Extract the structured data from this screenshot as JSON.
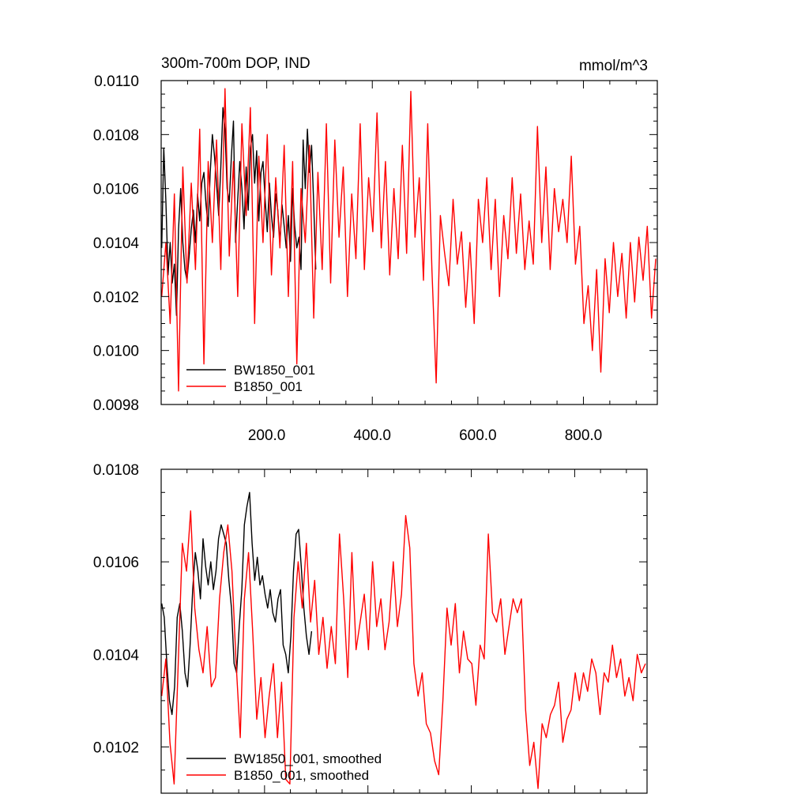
{
  "chart_data": [
    {
      "type": "line",
      "title": "300m-700m DOP, IND",
      "units": "mmol/m^3",
      "xlim": [
        0,
        940
      ],
      "ylim": [
        0.0098,
        0.011
      ],
      "x_ticks": [
        200,
        400,
        600,
        800
      ],
      "x_tick_labels": [
        "200.0",
        "400.0",
        "600.0",
        "800.0"
      ],
      "y_ticks": [
        0.0098,
        0.01,
        0.0102,
        0.0104,
        0.0106,
        0.0108,
        0.011
      ],
      "y_tick_labels": [
        "0.0098",
        "0.0100",
        "0.0102",
        "0.0104",
        "0.0106",
        "0.0108",
        "0.0110"
      ],
      "legend_position": "bottom-left",
      "series": [
        {
          "name": "BW1850_001",
          "color": "#000000",
          "x": [
            1,
            5,
            9,
            13,
            17,
            21,
            25,
            29,
            33,
            37,
            41,
            45,
            49,
            53,
            57,
            61,
            65,
            69,
            73,
            77,
            81,
            85,
            89,
            93,
            97,
            101,
            105,
            109,
            113,
            117,
            121,
            125,
            129,
            133,
            137,
            141,
            145,
            149,
            153,
            157,
            161,
            165,
            169,
            173,
            177,
            181,
            185,
            189,
            193,
            197,
            201,
            205,
            209,
            213,
            217,
            221,
            225,
            229,
            233,
            237,
            241,
            245,
            249,
            253,
            257,
            261,
            265,
            269,
            273,
            277,
            281,
            285,
            289,
            293
          ],
          "y": [
            0.01038,
            0.01075,
            0.01055,
            0.01028,
            0.0104,
            0.01025,
            0.01032,
            0.01013,
            0.01045,
            0.0106,
            0.0104,
            0.0103,
            0.01026,
            0.01035,
            0.01045,
            0.01052,
            0.0104,
            0.01058,
            0.01048,
            0.01062,
            0.01066,
            0.01054,
            0.01046,
            0.01066,
            0.0108,
            0.01072,
            0.01062,
            0.0105,
            0.01068,
            0.0109,
            0.01082,
            0.0106,
            0.01055,
            0.01072,
            0.01085,
            0.0104,
            0.01056,
            0.0107,
            0.0106,
            0.01045,
            0.01068,
            0.01052,
            0.01075,
            0.0108,
            0.01062,
            0.01074,
            0.01048,
            0.01066,
            0.0107,
            0.01056,
            0.01044,
            0.01062,
            0.0105,
            0.01042,
            0.01058,
            0.01052,
            0.0104,
            0.01054,
            0.01046,
            0.01038,
            0.0105,
            0.01033,
            0.0106,
            0.01046,
            0.01038,
            0.01042,
            0.0103,
            0.01078,
            0.0106,
            0.01082,
            0.01066,
            0.01076,
            0.01054,
            0.0103
          ]
        },
        {
          "name": "B1850_001",
          "color": "#ff0000",
          "x": [
            1,
            9,
            17,
            25,
            33,
            41,
            49,
            57,
            65,
            73,
            81,
            89,
            97,
            105,
            113,
            121,
            129,
            137,
            145,
            153,
            161,
            169,
            177,
            185,
            193,
            201,
            209,
            217,
            225,
            233,
            241,
            249,
            257,
            265,
            273,
            281,
            289,
            297,
            305,
            313,
            321,
            329,
            337,
            345,
            353,
            361,
            369,
            377,
            385,
            393,
            401,
            409,
            417,
            425,
            433,
            441,
            449,
            457,
            465,
            473,
            481,
            489,
            497,
            505,
            513,
            521,
            529,
            537,
            545,
            553,
            561,
            569,
            577,
            585,
            593,
            601,
            609,
            617,
            625,
            633,
            641,
            649,
            657,
            665,
            673,
            681,
            689,
            697,
            705,
            713,
            721,
            729,
            737,
            745,
            753,
            761,
            769,
            777,
            785,
            793,
            801,
            809,
            817,
            825,
            833,
            841,
            849,
            857,
            865,
            873,
            881,
            889,
            897,
            905,
            913,
            921,
            929,
            937
          ],
          "y": [
            0.0102,
            0.0104,
            0.0101,
            0.01058,
            0.00985,
            0.01068,
            0.01025,
            0.01062,
            0.0103,
            0.01082,
            0.00995,
            0.0107,
            0.0104,
            0.01078,
            0.0103,
            0.01097,
            0.01035,
            0.0107,
            0.0102,
            0.01084,
            0.0105,
            0.0109,
            0.0101,
            0.01072,
            0.0104,
            0.0108,
            0.01028,
            0.01064,
            0.01038,
            0.01076,
            0.0102,
            0.0107,
            0.00995,
            0.0106,
            0.0104,
            0.01076,
            0.01012,
            0.01066,
            0.0103,
            0.01084,
            0.01025,
            0.01078,
            0.01042,
            0.01068,
            0.0102,
            0.01058,
            0.01034,
            0.01084,
            0.0103,
            0.01064,
            0.01044,
            0.01088,
            0.01038,
            0.0107,
            0.01028,
            0.0106,
            0.01034,
            0.01076,
            0.01036,
            0.01096,
            0.01042,
            0.01064,
            0.01026,
            0.01084,
            0.0103,
            0.00988,
            0.0105,
            0.01036,
            0.01024,
            0.01056,
            0.01032,
            0.01044,
            0.01016,
            0.0104,
            0.0101,
            0.01056,
            0.0104,
            0.01064,
            0.0103,
            0.01056,
            0.0102,
            0.0105,
            0.01034,
            0.01064,
            0.01036,
            0.01058,
            0.0103,
            0.01048,
            0.01032,
            0.01083,
            0.0104,
            0.01068,
            0.0103,
            0.0106,
            0.01044,
            0.01056,
            0.0104,
            0.01072,
            0.01032,
            0.01046,
            0.0101,
            0.01024,
            0.01,
            0.0103,
            0.00992,
            0.01034,
            0.01014,
            0.0104,
            0.0102,
            0.01036,
            0.01012,
            0.0104,
            0.01018,
            0.01042,
            0.01026,
            0.01046,
            0.01012,
            0.01034
          ]
        }
      ]
    },
    {
      "type": "line",
      "xlim": [
        0,
        940
      ],
      "ylim": [
        0.0101,
        0.0108
      ],
      "x_ticks": [
        200,
        400,
        600,
        800
      ],
      "y_ticks": [
        0.0102,
        0.0104,
        0.0106,
        0.0108
      ],
      "y_tick_labels": [
        "0.0102",
        "0.0104",
        "0.0106",
        "0.0108"
      ],
      "legend_position": "bottom-left",
      "series": [
        {
          "name": "BW1850_001, smoothed",
          "color": "#000000",
          "x": [
            1,
            6,
            11,
            16,
            21,
            26,
            31,
            36,
            41,
            46,
            51,
            56,
            61,
            66,
            71,
            76,
            81,
            86,
            91,
            96,
            101,
            106,
            111,
            116,
            121,
            126,
            131,
            136,
            141,
            146,
            151,
            156,
            161,
            166,
            171,
            176,
            181,
            186,
            191,
            196,
            201,
            206,
            211,
            216,
            221,
            226,
            231,
            236,
            241,
            246,
            251,
            256,
            261,
            266,
            271,
            276,
            281,
            286,
            291
          ],
          "y": [
            0.01051,
            0.01048,
            0.01038,
            0.0103,
            0.01027,
            0.01033,
            0.01048,
            0.01051,
            0.01045,
            0.01036,
            0.01033,
            0.01042,
            0.01054,
            0.01062,
            0.01058,
            0.01052,
            0.01065,
            0.01059,
            0.01055,
            0.0106,
            0.01054,
            0.01058,
            0.01065,
            0.01068,
            0.01066,
            0.01064,
            0.01056,
            0.0105,
            0.01038,
            0.01036,
            0.01046,
            0.01054,
            0.01068,
            0.01072,
            0.01075,
            0.01064,
            0.01056,
            0.01061,
            0.01055,
            0.01057,
            0.01053,
            0.0105,
            0.01054,
            0.01049,
            0.01047,
            0.01052,
            0.01054,
            0.01042,
            0.0104,
            0.01036,
            0.01044,
            0.01058,
            0.01066,
            0.01067,
            0.01059,
            0.0105,
            0.01044,
            0.0104,
            0.01045
          ]
        },
        {
          "name": "B1850_001, smoothed",
          "color": "#ff0000",
          "x": [
            1,
            9,
            17,
            25,
            33,
            41,
            49,
            57,
            65,
            73,
            81,
            89,
            97,
            105,
            113,
            121,
            129,
            137,
            145,
            153,
            161,
            169,
            177,
            185,
            193,
            201,
            209,
            217,
            225,
            233,
            241,
            249,
            257,
            265,
            273,
            281,
            289,
            297,
            305,
            313,
            321,
            329,
            337,
            345,
            353,
            361,
            369,
            377,
            385,
            393,
            401,
            409,
            417,
            425,
            433,
            441,
            449,
            457,
            465,
            473,
            481,
            489,
            497,
            505,
            513,
            521,
            529,
            537,
            545,
            553,
            561,
            569,
            577,
            585,
            593,
            601,
            609,
            617,
            625,
            633,
            641,
            649,
            657,
            665,
            673,
            681,
            689,
            697,
            705,
            713,
            721,
            729,
            737,
            745,
            753,
            761,
            769,
            777,
            785,
            793,
            801,
            809,
            817,
            825,
            833,
            841,
            849,
            857,
            865,
            873,
            881,
            889,
            897,
            905,
            913,
            921,
            929,
            937
          ],
          "y": [
            0.01031,
            0.01039,
            0.01021,
            0.01012,
            0.01038,
            0.01064,
            0.01058,
            0.01071,
            0.0105,
            0.01041,
            0.01036,
            0.01046,
            0.01033,
            0.01035,
            0.01052,
            0.01062,
            0.01068,
            0.01058,
            0.01038,
            0.01022,
            0.01052,
            0.01062,
            0.01045,
            0.01026,
            0.01035,
            0.01022,
            0.01031,
            0.01038,
            0.01022,
            0.01034,
            0.01013,
            0.01012,
            0.01048,
            0.0106,
            0.0105,
            0.01064,
            0.01047,
            0.01056,
            0.0104,
            0.01048,
            0.01037,
            0.01046,
            0.01038,
            0.01066,
            0.01052,
            0.01035,
            0.01062,
            0.01041,
            0.01047,
            0.01053,
            0.01041,
            0.0106,
            0.01046,
            0.01052,
            0.01041,
            0.01047,
            0.0106,
            0.01046,
            0.01053,
            0.0107,
            0.01063,
            0.01038,
            0.01031,
            0.01036,
            0.01025,
            0.01023,
            0.01017,
            0.01014,
            0.0103,
            0.0105,
            0.01042,
            0.01051,
            0.01036,
            0.01045,
            0.01039,
            0.01038,
            0.01029,
            0.01042,
            0.01039,
            0.01066,
            0.01049,
            0.01047,
            0.01052,
            0.0104,
            0.01046,
            0.01052,
            0.01049,
            0.01052,
            0.01028,
            0.01016,
            0.01021,
            0.01011,
            0.01025,
            0.01022,
            0.01027,
            0.01029,
            0.01034,
            0.01021,
            0.01026,
            0.01028,
            0.01036,
            0.0103,
            0.01036,
            0.01032,
            0.01039,
            0.01036,
            0.01027,
            0.01036,
            0.01034,
            0.01042,
            0.01035,
            0.01039,
            0.01031,
            0.01035,
            0.0103,
            0.0104,
            0.01036,
            0.01038
          ]
        }
      ]
    }
  ]
}
